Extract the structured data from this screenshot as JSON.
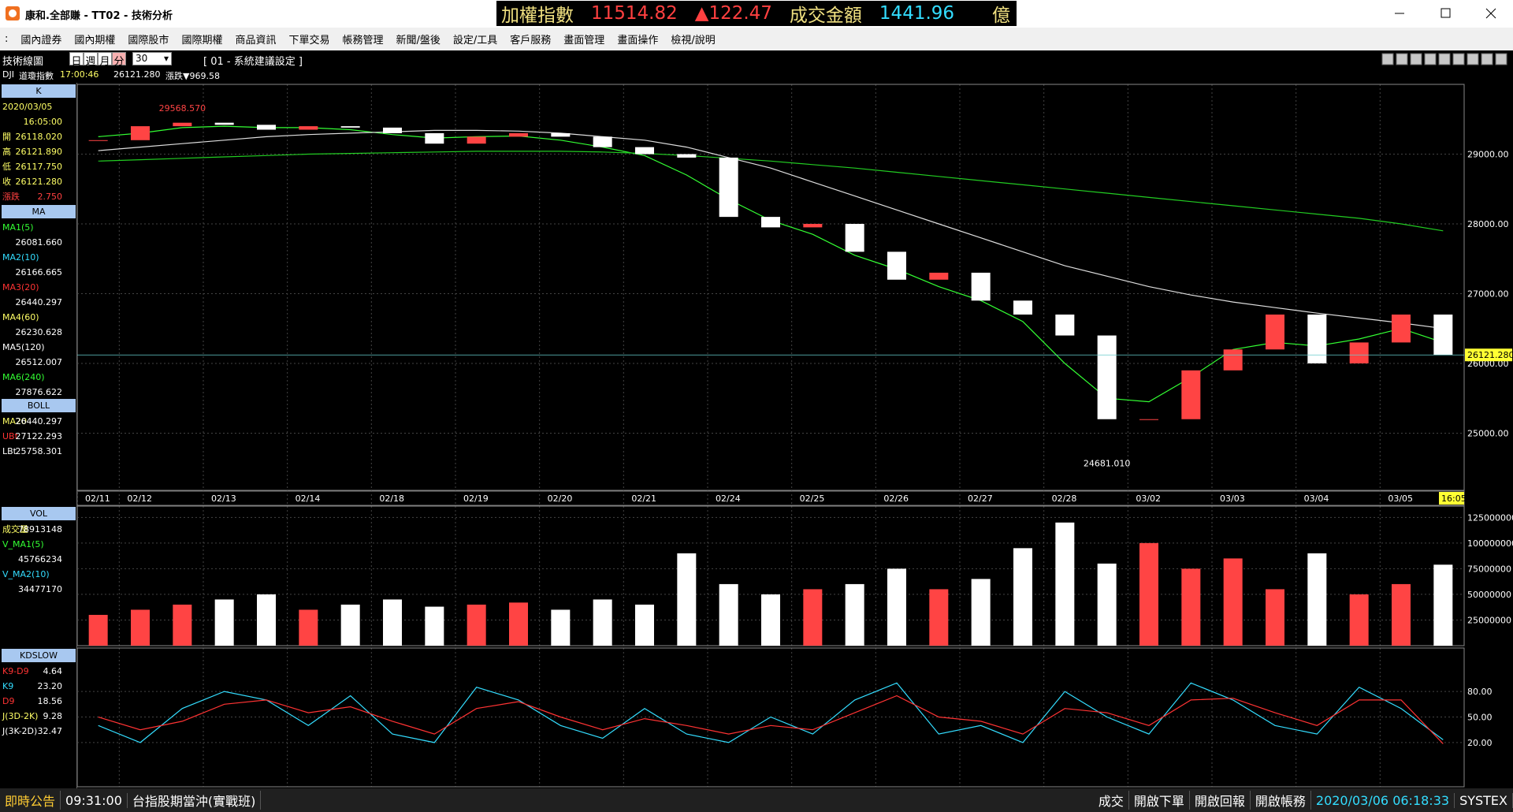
{
  "title_bar": {
    "title": "康和.全部賺 - TT02 - 技術分析",
    "ticker": [
      "加權指數",
      "11514.82",
      "▲122.47",
      "成交金額",
      "1441.96",
      "億"
    ]
  },
  "menu": [
    ":",
    "國內證券",
    "國內期權",
    "國際股市",
    "國際期權",
    "商品資訊",
    "下單交易",
    "帳務管理",
    "新聞/盤後",
    "設定/工具",
    "客戶服務",
    "畫面管理",
    "畫面操作",
    "檢視/說明"
  ],
  "toolbar": {
    "title": "技術線圖",
    "periods": [
      "日",
      "週",
      "月",
      "分"
    ],
    "selected_period": 3,
    "interval": "30",
    "setting": "[ 01 - 系統建議設定 ]"
  },
  "info_row": [
    "DJI",
    "道瓊指數",
    "17:00:46",
    "26121.280",
    "漲跌▼969.58"
  ],
  "left_panel": [
    {
      "header": "K",
      "rows": [
        {
          "label": "2020/03/05",
          "color": "#ffff66"
        },
        {
          "value": "16:05:00",
          "color": "#ffff66"
        },
        {
          "label": "開",
          "value": "26118.020",
          "color": "#ffff66"
        },
        {
          "label": "高",
          "value": "26121.890",
          "color": "#ffff66"
        },
        {
          "label": "低",
          "value": "26117.750",
          "color": "#ffff66"
        },
        {
          "label": "收",
          "value": "26121.280",
          "color": "#ffff66"
        },
        {
          "label": "漲跌",
          "value": "2.750",
          "color": "#ff4040"
        }
      ]
    },
    {
      "header": "MA",
      "rows": [
        {
          "label": "MA1(5)",
          "value": "26081.660",
          "color": "#33ff33"
        },
        {
          "label": "MA2(10)",
          "value": "26166.665",
          "color": "#33ddff"
        },
        {
          "label": "MA3(20)",
          "value": "26440.297",
          "color": "#ff3333"
        },
        {
          "label": "MA4(60)",
          "value": "26230.628",
          "color": "#ffff66"
        },
        {
          "label": "MA5(120)",
          "value": "26512.007",
          "color": "#ffffff"
        },
        {
          "label": "MA6(240)",
          "value": "27876.622",
          "color": "#33ff33"
        }
      ]
    },
    {
      "header": "BOLL",
      "rows": [
        {
          "label": "MA20",
          "value": "26440.297",
          "color": "#ffff66"
        },
        {
          "label": "UBt",
          "value": "27122.293",
          "color": "#ff3333"
        },
        {
          "label": "LBt",
          "value": "25758.301",
          "color": "#ffffff"
        }
      ]
    },
    {
      "header": "VOL",
      "rows": [
        {
          "label": "成交量",
          "value": "78913148",
          "color": "#ffff66"
        },
        {
          "label": "V_MA1(5)",
          "value": "45766234",
          "color": "#33ff33"
        },
        {
          "label": "V_MA2(10)",
          "value": "34477170",
          "color": "#33ddff"
        }
      ]
    },
    {
      "header": "KDSLOW",
      "rows": [
        {
          "label": "K9-D9",
          "value": "4.64",
          "color": "#ff3333"
        },
        {
          "label": "K9",
          "value": "23.20",
          "color": "#33ddff"
        },
        {
          "label": "D9",
          "value": "18.56",
          "color": "#ff3333"
        },
        {
          "label": "J(3D-2K)",
          "value": "9.28",
          "color": "#ffff66"
        },
        {
          "label": "J(3K-2D)",
          "value": "32.47",
          "color": "#ffffff"
        }
      ]
    }
  ],
  "chart_data": [
    {
      "type": "candlestick",
      "categories": [
        "02/11",
        "02/12",
        null,
        "02/13",
        null,
        "02/14",
        null,
        "02/18",
        null,
        "02/19",
        null,
        "02/20",
        null,
        "02/21",
        null,
        "02/24",
        null,
        "02/25",
        null,
        "02/26",
        null,
        "02/27",
        null,
        "02/28",
        null,
        "03/02",
        null,
        "03/03",
        null,
        "03/04",
        null,
        "03/05",
        null
      ],
      "close": [
        29200,
        29400,
        29450,
        29420,
        29350,
        29400,
        29380,
        29300,
        29150,
        29250,
        29300,
        29250,
        29100,
        29000,
        28950,
        28100,
        27950,
        28000,
        27600,
        27200,
        27300,
        26900,
        26700,
        26400,
        25200,
        25200,
        25900,
        26200,
        26700,
        26000,
        26300,
        26700,
        26121.28
      ],
      "up_color": "#ff4444",
      "down_color": "#ffffff",
      "series": [
        {
          "color": "#33ff33",
          "values": [
            29250,
            29300,
            29380,
            29400,
            29380,
            29380,
            29350,
            29280,
            29230,
            29250,
            29260,
            29200,
            29100,
            28980,
            28700,
            28350,
            28050,
            27850,
            27550,
            27350,
            27100,
            26900,
            26600,
            26000,
            25500,
            25450,
            25800,
            26200,
            26300,
            26250,
            26350,
            26500,
            26300
          ]
        },
        {
          "color": "#dddddd",
          "values": [
            29050,
            29100,
            29150,
            29200,
            29250,
            29280,
            29300,
            29320,
            29340,
            29340,
            29330,
            29300,
            29250,
            29200,
            29100,
            28950,
            28800,
            28600,
            28400,
            28200,
            28000,
            27800,
            27600,
            27400,
            27250,
            27100,
            26980,
            26880,
            26800,
            26720,
            26650,
            26580,
            26500
          ]
        },
        {
          "color": "#22cc22",
          "values": [
            28900,
            28920,
            28940,
            28960,
            28980,
            29000,
            29010,
            29020,
            29030,
            29040,
            29040,
            29040,
            29030,
            29010,
            28980,
            28940,
            28900,
            28850,
            28800,
            28740,
            28680,
            28620,
            28560,
            28500,
            28440,
            28380,
            28320,
            28260,
            28200,
            28140,
            28080,
            28000,
            27900
          ]
        }
      ],
      "ylim": [
        24180,
        30000
      ],
      "yticks": [
        {
          "value": 25000,
          "label": "25000.00"
        },
        {
          "value": 26000,
          "label": "26000.00"
        },
        {
          "value": 27000,
          "label": "27000.00"
        },
        {
          "value": 28000,
          "label": "28000.00"
        },
        {
          "value": 29000,
          "label": "29000.00"
        }
      ],
      "high_label": {
        "value": 29568.57,
        "label": "29568.570"
      },
      "low_label": {
        "value": 24681.01,
        "label": "24681.010"
      },
      "last_price_label": "26121.280",
      "time_label": "16:05",
      "grid": true
    },
    {
      "type": "bar",
      "values": [
        30000000,
        35000000,
        40000000,
        45000000,
        50000000,
        35000000,
        40000000,
        45000000,
        38000000,
        40000000,
        42000000,
        35000000,
        45000000,
        40000000,
        90000000,
        60000000,
        50000000,
        55000000,
        60000000,
        75000000,
        55000000,
        65000000,
        95000000,
        120000000,
        80000000,
        100000000,
        75000000,
        85000000,
        55000000,
        90000000,
        50000000,
        60000000,
        78913148
      ],
      "ylim": [
        0,
        136000000
      ],
      "yticks": [
        25000000,
        50000000,
        75000000,
        100000000,
        125000000
      ]
    },
    {
      "type": "line",
      "series": [
        {
          "color": "#33ddff",
          "values": [
            40,
            20,
            60,
            80,
            70,
            40,
            75,
            30,
            20,
            85,
            70,
            40,
            25,
            60,
            30,
            20,
            50,
            30,
            70,
            90,
            30,
            40,
            20,
            80,
            50,
            30,
            90,
            70,
            40,
            30,
            85,
            60,
            23.2
          ]
        },
        {
          "color": "#ff3333",
          "values": [
            50,
            35,
            45,
            65,
            70,
            55,
            62,
            45,
            30,
            60,
            68,
            50,
            35,
            48,
            40,
            30,
            40,
            35,
            55,
            75,
            50,
            45,
            30,
            60,
            55,
            40,
            70,
            72,
            55,
            40,
            70,
            70,
            18.56
          ]
        }
      ],
      "ylim": [
        -32,
        131
      ],
      "yticks": [
        {
          "value": 20,
          "label": "20.00"
        },
        {
          "value": 50,
          "label": "50.00"
        },
        {
          "value": 80,
          "label": "80.00"
        }
      ]
    }
  ],
  "status_bar": {
    "left": [
      "即時公告",
      "09:31:00",
      "台指股期當沖(實戰班)"
    ],
    "right": [
      "成交",
      "開啟下單",
      "開啟回報",
      "開啟帳務",
      "2020/03/06 06:18:33",
      "SYSTEX"
    ]
  }
}
